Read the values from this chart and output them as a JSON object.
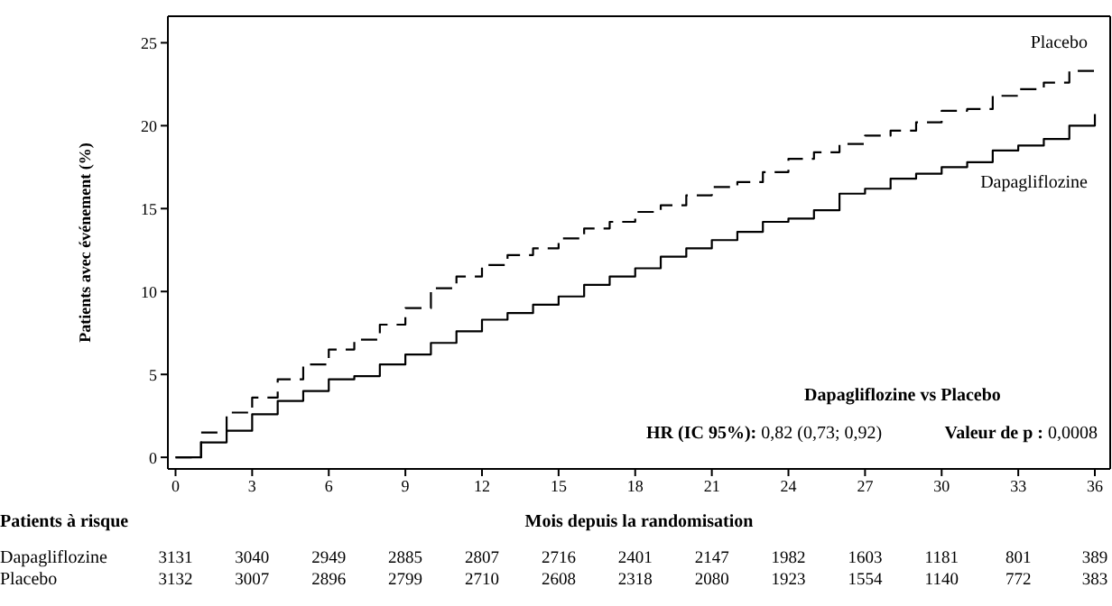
{
  "chart_data": {
    "type": "step",
    "xlabel": "Mois depuis la randomisation",
    "ylabel": "Patients avec événement (%)",
    "xlim": [
      -0.3,
      36.6
    ],
    "ylim": [
      -0.7,
      26.6
    ],
    "xticks": [
      0,
      3,
      6,
      9,
      12,
      15,
      18,
      21,
      24,
      27,
      30,
      33,
      36
    ],
    "yticks": [
      0,
      5,
      10,
      15,
      20,
      25
    ],
    "marker": "none",
    "series": [
      {
        "name": "Placebo",
        "color": "#000000",
        "line_style": "dashed",
        "x": [
          0,
          1,
          2,
          3,
          4,
          5,
          6,
          7,
          8,
          9,
          10,
          11,
          12,
          13,
          14,
          15,
          16,
          17,
          18,
          19,
          20,
          21,
          22,
          23,
          24,
          25,
          26,
          27,
          28,
          29,
          30,
          31,
          32,
          33,
          34,
          35,
          36
        ],
        "values": [
          0,
          1.5,
          2.7,
          3.6,
          4.7,
          5.6,
          6.5,
          7.1,
          8.0,
          9.0,
          10.2,
          10.9,
          11.6,
          12.2,
          12.6,
          13.2,
          13.8,
          14.2,
          14.8,
          15.2,
          15.8,
          16.3,
          16.6,
          17.2,
          18.0,
          18.4,
          18.9,
          19.4,
          19.7,
          20.2,
          20.9,
          21.0,
          21.8,
          22.2,
          22.6,
          23.3,
          23.5
        ]
      },
      {
        "name": "Dapagliflozine",
        "color": "#000000",
        "line_style": "solid",
        "x": [
          0,
          1,
          2,
          3,
          4,
          5,
          6,
          7,
          8,
          9,
          10,
          11,
          12,
          13,
          14,
          15,
          16,
          17,
          18,
          19,
          20,
          21,
          22,
          23,
          24,
          25,
          26,
          27,
          28,
          29,
          30,
          31,
          32,
          33,
          34,
          35,
          35.8,
          36
        ],
        "values": [
          0,
          0.9,
          1.6,
          2.6,
          3.4,
          4.0,
          4.7,
          4.9,
          5.6,
          6.2,
          6.9,
          7.6,
          8.3,
          8.7,
          9.2,
          9.7,
          10.4,
          10.9,
          11.4,
          12.1,
          12.6,
          13.1,
          13.6,
          14.2,
          14.4,
          14.9,
          15.9,
          16.2,
          16.8,
          17.1,
          17.5,
          17.8,
          18.5,
          18.8,
          19.2,
          20.0,
          20.0,
          20.7
        ]
      }
    ],
    "annotations": [
      "Dapagliflozine vs Placebo",
      "HR (IC 95%): 0,82 (0,73; 0,92)",
      "Valeur de p : 0,0008",
      "Patients à risque",
      "Dapagliflozine",
      "3131 3040 2949 2885 2807 2716 2401 2147 1982 1603 1181 801 389",
      "Placebo",
      "3132 3007 2896 2799 2710 2608 2318 2080 1923 1554 1140 772 383"
    ]
  }
}
